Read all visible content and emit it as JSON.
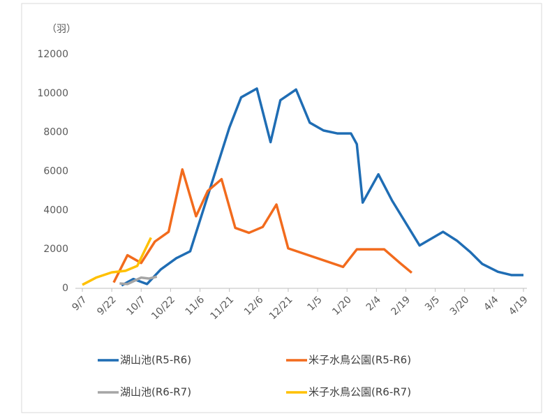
{
  "chart_data": {
    "type": "line",
    "y_unit_label": "（羽）",
    "xlim": [
      0,
      225
    ],
    "xticks": [
      {
        "value": 0,
        "label": "9/7"
      },
      {
        "value": 15,
        "label": "9/22"
      },
      {
        "value": 30,
        "label": "10/7"
      },
      {
        "value": 45,
        "label": "10/22"
      },
      {
        "value": 60,
        "label": "11/6"
      },
      {
        "value": 75,
        "label": "11/21"
      },
      {
        "value": 90,
        "label": "12/6"
      },
      {
        "value": 105,
        "label": "12/21"
      },
      {
        "value": 120,
        "label": "1/5"
      },
      {
        "value": 135,
        "label": "1/20"
      },
      {
        "value": 150,
        "label": "2/4"
      },
      {
        "value": 165,
        "label": "2/19"
      },
      {
        "value": 180,
        "label": "3/5"
      },
      {
        "value": 195,
        "label": "3/20"
      },
      {
        "value": 210,
        "label": "4/4"
      },
      {
        "value": 225,
        "label": "4/19"
      }
    ],
    "ylim": [
      0,
      12000
    ],
    "yticks": [
      0,
      2000,
      4000,
      6000,
      8000,
      10000,
      12000
    ],
    "grid": false,
    "series": [
      {
        "name": "湖山池(R5-R6)",
        "color": "#1f6db4",
        "x": [
          20,
          26,
          33,
          40,
          48,
          55,
          75,
          81,
          89,
          96,
          101,
          109,
          116,
          123,
          130,
          137,
          140,
          143,
          151,
          158,
          172,
          184,
          191,
          198,
          204,
          212,
          219,
          225
        ],
        "values": [
          150,
          480,
          220,
          970,
          1550,
          1900,
          8250,
          9800,
          10250,
          7500,
          9650,
          10200,
          8500,
          8100,
          7950,
          7950,
          7400,
          4400,
          5850,
          4500,
          2200,
          2900,
          2450,
          1850,
          1250,
          850,
          680,
          680
        ]
      },
      {
        "name": "米子水鳥公園(R5-R6)",
        "color": "#f26b1d",
        "x": [
          16,
          23,
          30,
          37,
          44,
          51,
          58,
          64,
          71,
          78,
          85,
          92,
          99,
          105,
          133,
          140,
          154,
          162,
          168
        ],
        "values": [
          300,
          1700,
          1300,
          2400,
          2900,
          6100,
          3700,
          5000,
          5600,
          3100,
          2850,
          3150,
          4300,
          2050,
          1100,
          2000,
          2000,
          1300,
          800
        ]
      },
      {
        "name": "湖山池(R6-R7)",
        "color": "#a5a5a5",
        "x": [
          19,
          23,
          30,
          34,
          38
        ],
        "values": [
          250,
          220,
          550,
          500,
          600
        ]
      },
      {
        "name": "米子水鳥公園(R6-R7)",
        "color": "#ffc000",
        "x": [
          0,
          7,
          15,
          22,
          28,
          35
        ],
        "values": [
          180,
          550,
          820,
          900,
          1150,
          2600
        ]
      }
    ]
  }
}
